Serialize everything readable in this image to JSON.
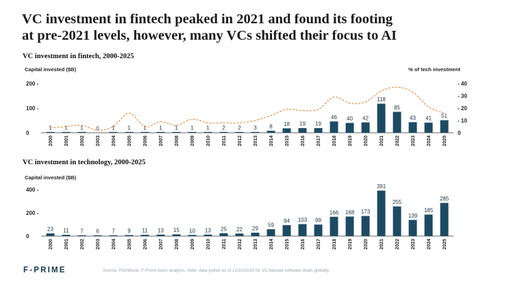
{
  "headline": {
    "line1": "VC investment in fintech peaked in 2021 and found its footing",
    "line2": "at pre-2021 levels, however, many VCs shifted their focus to AI"
  },
  "chart_data": [
    {
      "type": "bar",
      "title": "VC investment in fintech, 2000-2025",
      "ylabel": "Capital invested ($B)",
      "y2label": "% of tech investment",
      "ylim": [
        0,
        200
      ],
      "yticks": [
        "200 -",
        "100 -",
        "0"
      ],
      "y2lim": [
        0,
        40
      ],
      "y2ticks": [
        "- 40",
        "- 30",
        "- 20",
        "- 10",
        "0"
      ],
      "categories": [
        "2000",
        "2001",
        "2002",
        "2003",
        "2004",
        "2005",
        "2006",
        "2007",
        "2008",
        "2009",
        "2010",
        "2011",
        "2012",
        "2013",
        "2014",
        "2015",
        "2016",
        "2017",
        "2018",
        "2019",
        "2020",
        "2021",
        "2022",
        "2023",
        "2024",
        "2025"
      ],
      "series": [
        {
          "name": "Capital invested ($B)",
          "values": [
            1,
            1,
            1,
            0,
            1,
            1,
            1,
            1,
            1,
            1,
            1,
            2,
            2,
            3,
            8,
            18,
            19,
            19,
            46,
            40,
            42,
            118,
            85,
            43,
            41,
            51
          ]
        },
        {
          "name": "% of tech investment",
          "kind": "line",
          "values": [
            4,
            5,
            6,
            2,
            5,
            16,
            5,
            9,
            6,
            11,
            8,
            8,
            8,
            10,
            14,
            19,
            18,
            19,
            29,
            24,
            25,
            34,
            37,
            33,
            21,
            16
          ]
        }
      ],
      "colors": {
        "bar": "#1d4a63",
        "line": "#e8873f"
      }
    },
    {
      "type": "bar",
      "title": "VC investment in technology, 2000-2025",
      "ylabel": "Capital invested ($B)",
      "ylim": [
        0,
        400
      ],
      "yticks": [
        "400 -",
        "200 -",
        "0"
      ],
      "categories": [
        "2000",
        "2001",
        "2002",
        "2003",
        "2004",
        "2005",
        "2006",
        "2007",
        "2008",
        "2009",
        "2010",
        "2011",
        "2012",
        "2013",
        "2014",
        "2015",
        "2016",
        "2017",
        "2018",
        "2019",
        "2020",
        "2021",
        "2022",
        "2023",
        "2024",
        "2025"
      ],
      "series": [
        {
          "name": "Capital invested ($B)",
          "values": [
            23,
            11,
            7,
            6,
            7,
            9,
            11,
            13,
            15,
            10,
            13,
            25,
            22,
            29,
            59,
            94,
            103,
            99,
            166,
            168,
            173,
            391,
            255,
            139,
            185,
            285
          ]
        }
      ],
      "colors": {
        "bar": "#1d4a63"
      }
    }
  ],
  "footer": {
    "logo": "F-PRIME",
    "source": "Source: PitchBook, F-Prime team analysis. Note: data pulled as of 12/31/2025 for VC-backed software deals globally."
  }
}
